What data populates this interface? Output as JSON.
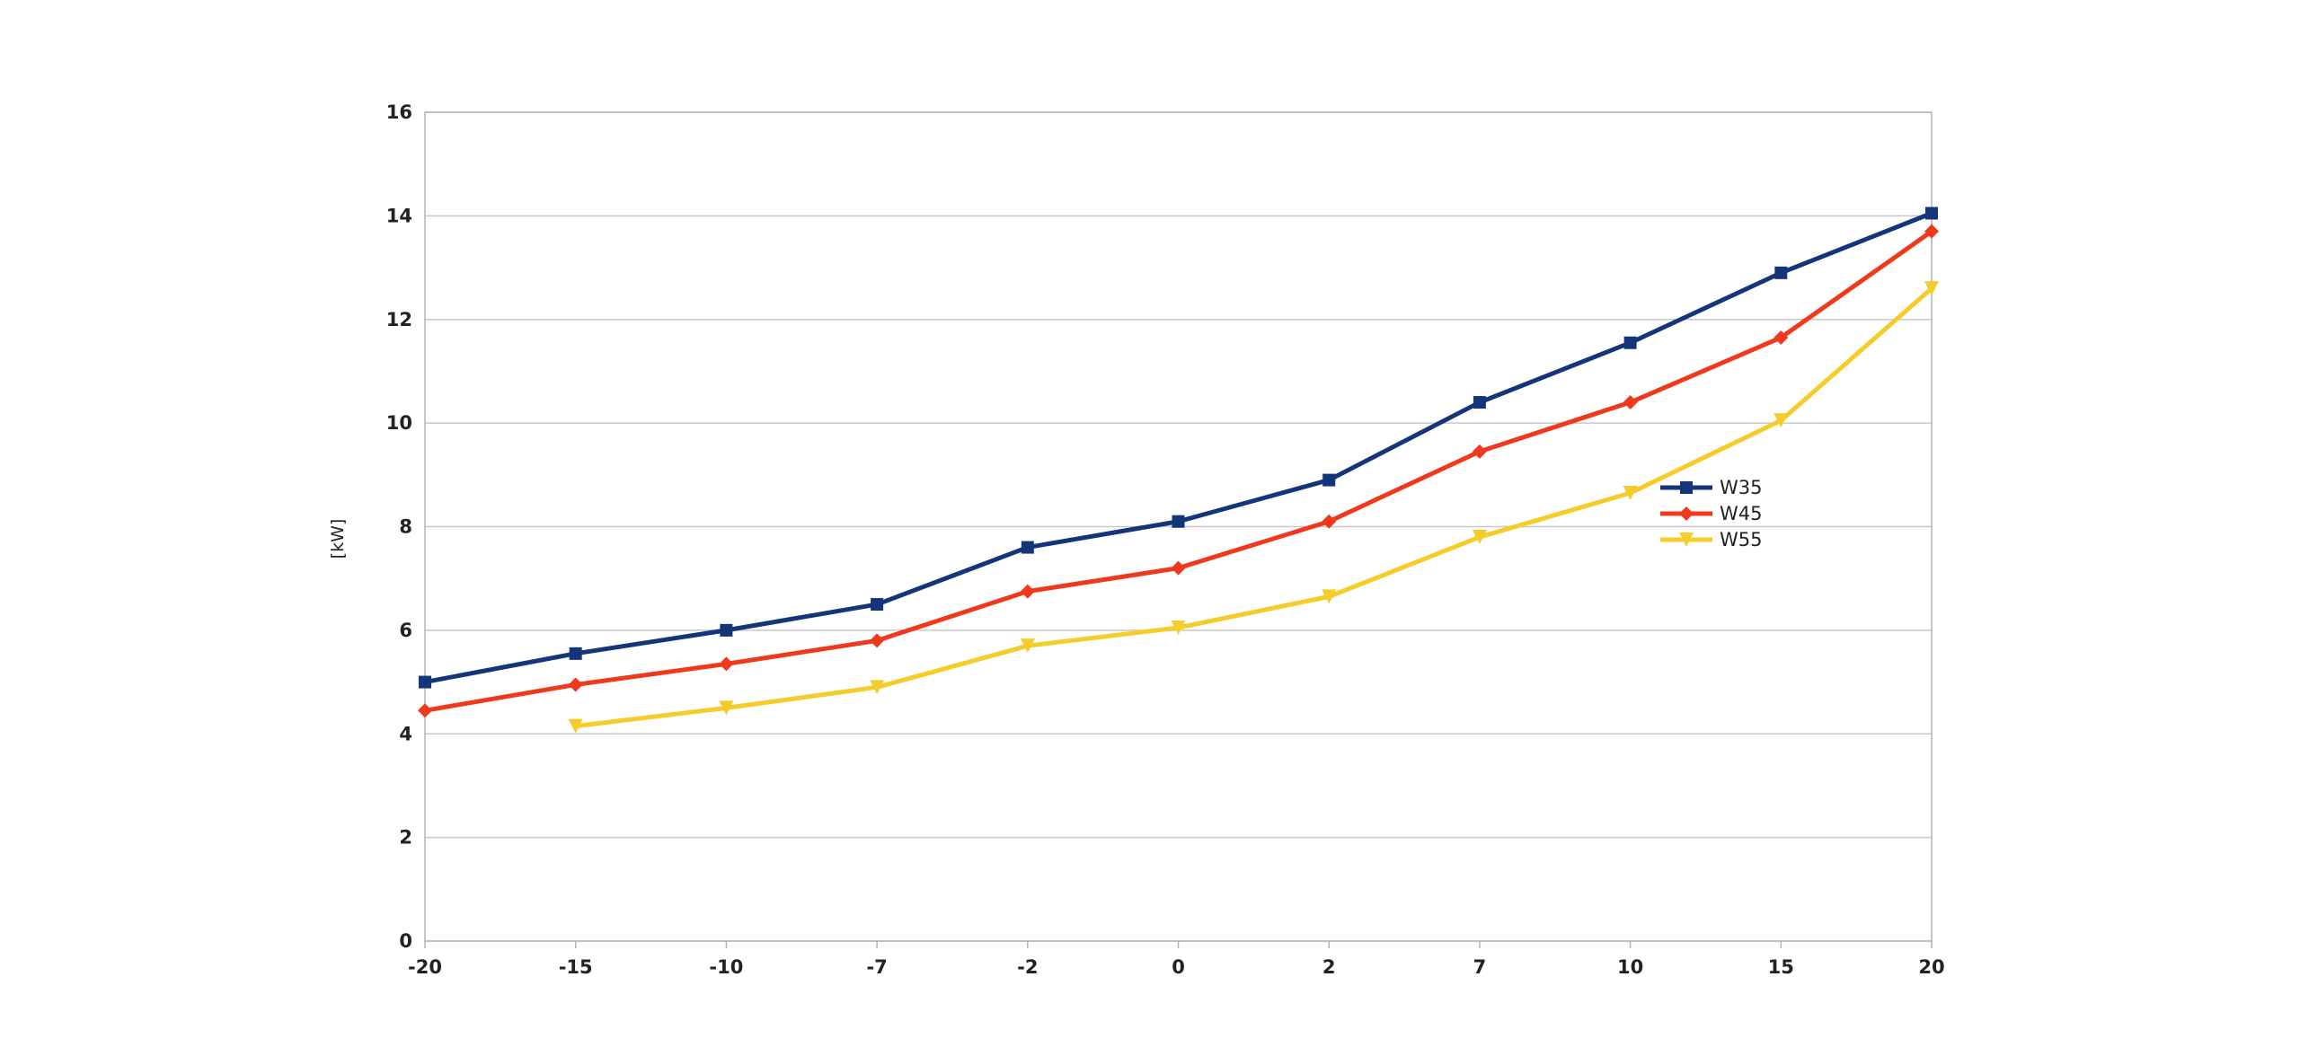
{
  "chart_data": {
    "type": "line",
    "categories": [
      "-20",
      "-15",
      "-10",
      "-7",
      "-2",
      "0",
      "2",
      "7",
      "10",
      "15",
      "20"
    ],
    "ylabel": "[kW]",
    "xlabel": "",
    "ylim": [
      0,
      16
    ],
    "yticks": [
      "0",
      "2",
      "4",
      "6",
      "8",
      "10",
      "12",
      "14",
      "16"
    ],
    "grid": true,
    "legend_position": "right",
    "series": [
      {
        "name": "W35",
        "color": "#14357a",
        "marker": "square",
        "values": [
          5.0,
          5.55,
          6.0,
          6.5,
          7.6,
          8.1,
          8.9,
          10.4,
          11.55,
          12.9,
          14.05
        ]
      },
      {
        "name": "W45",
        "color": "#f0391c",
        "marker": "diamond",
        "values": [
          4.45,
          4.95,
          5.35,
          5.8,
          6.75,
          7.2,
          8.1,
          9.45,
          10.4,
          11.65,
          13.7
        ]
      },
      {
        "name": "W55",
        "color": "#f5cc2a",
        "marker": "triangle-down",
        "values": [
          null,
          4.15,
          4.5,
          4.9,
          5.7,
          6.05,
          6.65,
          7.8,
          8.65,
          10.05,
          12.6
        ]
      }
    ]
  }
}
